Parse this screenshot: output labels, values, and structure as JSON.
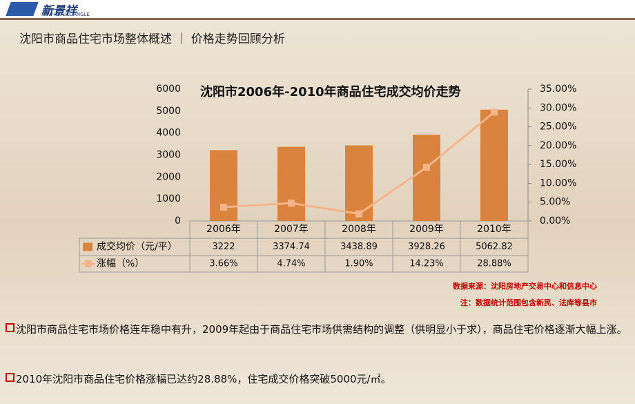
{
  "header": {
    "logo_cn": "新景祥",
    "logo_en": "NEW VISUAL ANGLE",
    "title": "沈阳市商品住宅市场整体概述 ｜ 价格走势回顾分析"
  },
  "chart_data": {
    "type": "bar-line",
    "title": "沈阳市2006年-2010年商品住宅成交均价走势",
    "categories": [
      "2006年",
      "2007年",
      "2008年",
      "2009年",
      "2010年"
    ],
    "series": [
      {
        "name": "成交均价（元/平）",
        "type": "bar",
        "color": "#d9833f",
        "values": [
          3222,
          3374.74,
          3438.89,
          3928.26,
          5062.82
        ]
      },
      {
        "name": "涨幅（%）",
        "type": "line",
        "axis": "y2",
        "color": "#f6b48a",
        "values": [
          3.66,
          4.74,
          1.9,
          14.23,
          28.88
        ],
        "value_labels": [
          "3.66%",
          "4.74%",
          "1.90%",
          "14.23%",
          "28.88%"
        ]
      }
    ],
    "ylim": [
      0,
      6000
    ],
    "yticks": [
      0,
      1000,
      2000,
      3000,
      4000,
      5000,
      6000
    ],
    "y2lim": [
      0,
      35
    ],
    "y2ticks": [
      {
        "value": 0,
        "label": "0.00%"
      },
      {
        "value": 5,
        "label": "5.00%"
      },
      {
        "value": 10,
        "label": "10.00%"
      },
      {
        "value": 15,
        "label": "15.00%"
      },
      {
        "value": 20,
        "label": "20.00%"
      },
      {
        "value": 25,
        "label": "25.00%"
      },
      {
        "value": 30,
        "label": "30.00%"
      },
      {
        "value": 35,
        "label": "35.00%"
      }
    ]
  },
  "notes": [
    "数据来源：沈阳房地产交易中心和信息中心",
    "注：数据统计范围包含新民、法库等县市"
  ],
  "bullets": [
    "沈阳市商品住宅市场价格连年稳中有升，2009年起由于商品住宅市场供需结构的调整（供明显小于求），商品住宅价格逐渐大幅上涨。",
    "2010年沈阳市商品住宅价格涨幅已达约28.88%，住宅成交价格突破5000元/㎡。"
  ]
}
